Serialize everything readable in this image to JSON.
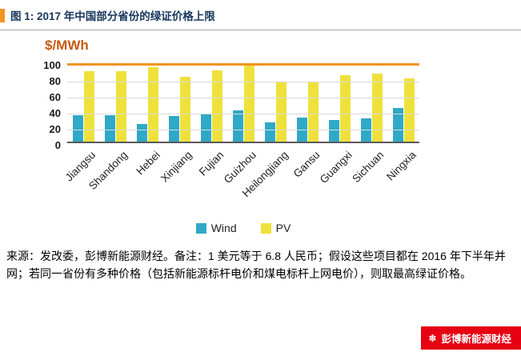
{
  "figure": {
    "title": "图 1: 2017 年中国部分省份的绿证价格上限",
    "y_axis_label": "$/MWh",
    "source_note": "来源：发改委，彭博新能源财经。备注：1 美元等于 6.8 人民币；假设这些项目都在 2016 年下半年并网；若同一省份有多种价格（包括新能源标杆电价和煤电标杆上网电价），则取最高绿证价格。",
    "brand_badge": "彭博新能源财经"
  },
  "icons": {
    "bnef_logo": "✽"
  },
  "colors": {
    "accent_orange": "#F0941E",
    "title_navy": "#17365D",
    "ylabel_brown": "#C55A11",
    "badge_red": "#E60012",
    "gridline": "#D9D9D9",
    "wind": "#2FA9C6",
    "pv": "#EFE13C"
  },
  "chart_data": {
    "type": "bar",
    "title": "2017 年中国部分省份的绿证价格上限",
    "xlabel": "",
    "ylabel": "$/MWh",
    "ylim": [
      0,
      100
    ],
    "yticks": [
      0,
      20,
      40,
      60,
      80,
      100
    ],
    "grid": true,
    "legend_position": "bottom",
    "categories": [
      "Jiangsu",
      "Shandong",
      "Hebei",
      "Xinjiang",
      "Fujian",
      "Guizhou",
      "Heilongjiang",
      "Gansu",
      "Guangxi",
      "Sichuan",
      "Ningxia"
    ],
    "series": [
      {
        "name": "Wind",
        "color": "#2FA9C6",
        "values": [
          33,
          33,
          22,
          32,
          34,
          39,
          24,
          30,
          27,
          29,
          42
        ]
      },
      {
        "name": "PV",
        "color": "#EFE13C",
        "values": [
          88,
          88,
          93,
          81,
          89,
          95,
          75,
          74,
          83,
          85,
          79
        ]
      }
    ]
  }
}
